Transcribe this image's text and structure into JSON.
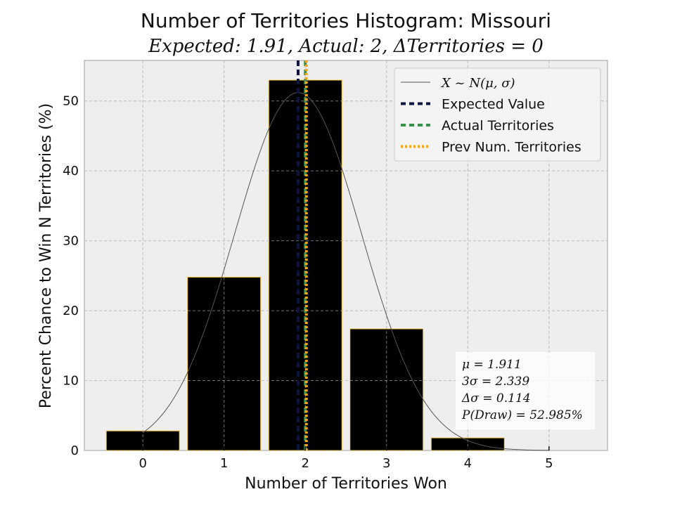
{
  "chart_data": {
    "type": "bar",
    "title": "Number of Territories Histogram: Missouri",
    "subtitle": "Expected: 1.91, Actual: 2, ΔTerritories = 0",
    "xlabel": "Number of Territories Won",
    "ylabel": "Percent Chance to Win N Territories (%)",
    "categories": [
      0,
      1,
      2,
      3,
      4,
      5
    ],
    "values": [
      2.8,
      24.8,
      52.985,
      17.4,
      1.8,
      0.0
    ],
    "xlim": [
      -0.72,
      5.72
    ],
    "ylim": [
      0,
      55.8
    ],
    "xticks": [
      0,
      1,
      2,
      3,
      4,
      5
    ],
    "yticks": [
      0,
      10,
      20,
      30,
      40,
      50
    ],
    "grid": true,
    "legend_position": "top-right",
    "normal_curve": {
      "mu": 1.911,
      "sigma": 0.78,
      "peak": 51.2,
      "from": 0,
      "to": 5
    },
    "vlines": [
      {
        "name": "Expected Value",
        "x": 1.911,
        "color": "#0b1640",
        "style": "dashed"
      },
      {
        "name": "Actual Territories",
        "x": 2,
        "color": "#3a8f4a",
        "style": "dashed"
      },
      {
        "name": "Prev Num. Territories",
        "x": 2,
        "color": "#f5a623",
        "style": "dotted"
      }
    ],
    "legend": [
      {
        "label": "X ~ N(μ, σ)",
        "kind": "line",
        "color": "#555555"
      },
      {
        "label": "Expected Value",
        "kind": "dashed",
        "color": "#0b1640"
      },
      {
        "label": "Actual Territories",
        "kind": "dashed",
        "color": "#3a8f4a"
      },
      {
        "label": "Prev Num. Territories",
        "kind": "dotted",
        "color": "#f5a623"
      }
    ],
    "stats": [
      "μ = 1.911",
      "3σ = 2.339",
      "Δσ = 0.114",
      "P(Draw) = 52.985%"
    ],
    "colors": {
      "bar_fill": "#000000",
      "bar_edge": "#f5c542",
      "axes_bg": "#eeeeee",
      "grid": "#b0b0b0"
    }
  }
}
